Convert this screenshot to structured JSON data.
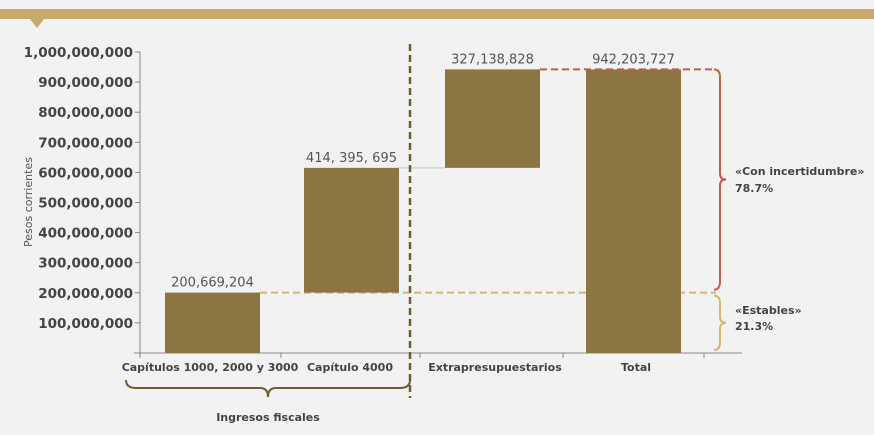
{
  "colors": {
    "background": "#f2f2f2",
    "banner": "#c7a96c",
    "bar": "#8a7543",
    "uncertain": "#c0604a",
    "stable": "#d7b670",
    "divider": "#6e5d33",
    "connector": "#cfcfcf",
    "group_brace": "#6e5d33"
  },
  "chart_data": {
    "type": "bar",
    "subtype": "waterfall",
    "ylabel": "Pesos corrientes",
    "ylim": [
      0,
      1000000000
    ],
    "yticks": [
      {
        "value": 100000000,
        "label": "100,000,000"
      },
      {
        "value": 200000000,
        "label": "200,000,000"
      },
      {
        "value": 300000000,
        "label": "300,000,000"
      },
      {
        "value": 400000000,
        "label": "400,000,000"
      },
      {
        "value": 500000000,
        "label": "500,000,000"
      },
      {
        "value": 600000000,
        "label": "600,000,000"
      },
      {
        "value": 700000000,
        "label": "700,000,000"
      },
      {
        "value": 800000000,
        "label": "800,000,000"
      },
      {
        "value": 900000000,
        "label": "900,000,000"
      },
      {
        "value": 1000000000,
        "label": "1,000,000,000"
      }
    ],
    "grid": false,
    "categories": [
      "Capítulos 1000, 2000 y 3000",
      "Capítulo 4000",
      "Extrapresupuestarios",
      "Total"
    ],
    "bars": [
      {
        "category": "Capítulos 1000, 2000 y 3000",
        "base": 0,
        "value": 200669204,
        "label": "200,669,204"
      },
      {
        "category": "Capítulo 4000",
        "base": 200669204,
        "value": 414395695,
        "label": "414, 395, 695"
      },
      {
        "category": "Extrapresupuestarios",
        "base": 615064899,
        "value": 327138828,
        "label": "327,138,828"
      },
      {
        "category": "Total",
        "base": 0,
        "value": 942203727,
        "label": "942,203,727"
      }
    ],
    "group": {
      "label": "Ingresos fiscales",
      "from": 0,
      "to": 1
    },
    "annotations": [
      {
        "label": "«Con incertidumbre»",
        "percent": "78.7%",
        "from": 200669204,
        "to": 942203727
      },
      {
        "label": "«Estables»",
        "percent": "21.3%",
        "from": 0,
        "to": 200669204
      }
    ]
  }
}
